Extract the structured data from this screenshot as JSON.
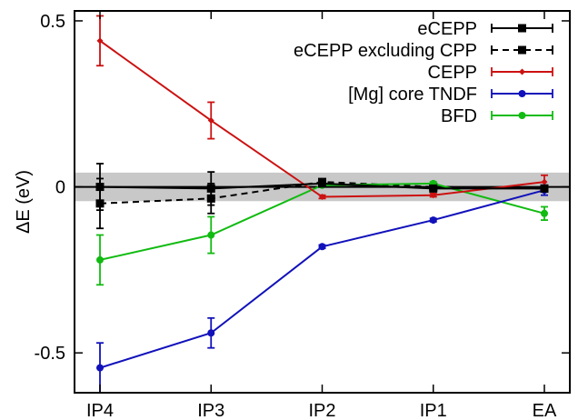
{
  "chart_data": {
    "type": "line",
    "categories": [
      "IP4",
      "IP3",
      "IP2",
      "IP1",
      "EA"
    ],
    "ylabel": "ΔE (eV)",
    "xlabel": "",
    "ylim": [
      -0.62,
      0.53
    ],
    "yticks": [
      0.5,
      0,
      -0.5
    ],
    "ytick_labels": [
      "0.5",
      "0",
      "-0.5"
    ],
    "grid": false,
    "legend_position": "top-right",
    "reference_band": {
      "low": -0.043,
      "high": 0.043,
      "color": "#c8c8c8"
    },
    "zero_line": true,
    "series": [
      {
        "name": "eCEPP",
        "color": "#000000",
        "dash": "solid",
        "marker": "square",
        "values": [
          0.0,
          -0.005,
          0.01,
          -0.005,
          -0.005
        ],
        "errors": [
          0.07,
          0.05,
          0.005,
          0.005,
          0.005
        ]
      },
      {
        "name": "eCEPP excluding CPP",
        "color": "#000000",
        "dash": "dashed",
        "marker": "square",
        "values": [
          -0.05,
          -0.035,
          0.015,
          0.0,
          -0.005
        ],
        "errors": [
          0.075,
          0.045,
          0.005,
          0.005,
          0.005
        ]
      },
      {
        "name": "CEPP",
        "color": "#cc1111",
        "dash": "solid",
        "marker": "diamond",
        "values": [
          0.44,
          0.2,
          -0.03,
          -0.025,
          0.015
        ],
        "errors": [
          0.075,
          0.055,
          0.005,
          0.005,
          0.02
        ]
      },
      {
        "name": "[Mg] core TNDF",
        "color": "#1111bb",
        "dash": "solid",
        "marker": "circle",
        "values": [
          -0.545,
          -0.44,
          -0.18,
          -0.1,
          -0.01
        ],
        "errors": [
          0.075,
          0.045,
          0.005,
          0.005,
          0.015
        ]
      },
      {
        "name": "BFD",
        "color": "#11bb11",
        "dash": "solid",
        "marker": "circle",
        "values": [
          -0.22,
          -0.145,
          0.005,
          0.01,
          -0.08
        ],
        "errors": [
          0.075,
          0.055,
          0.005,
          0.005,
          0.02
        ]
      }
    ]
  }
}
